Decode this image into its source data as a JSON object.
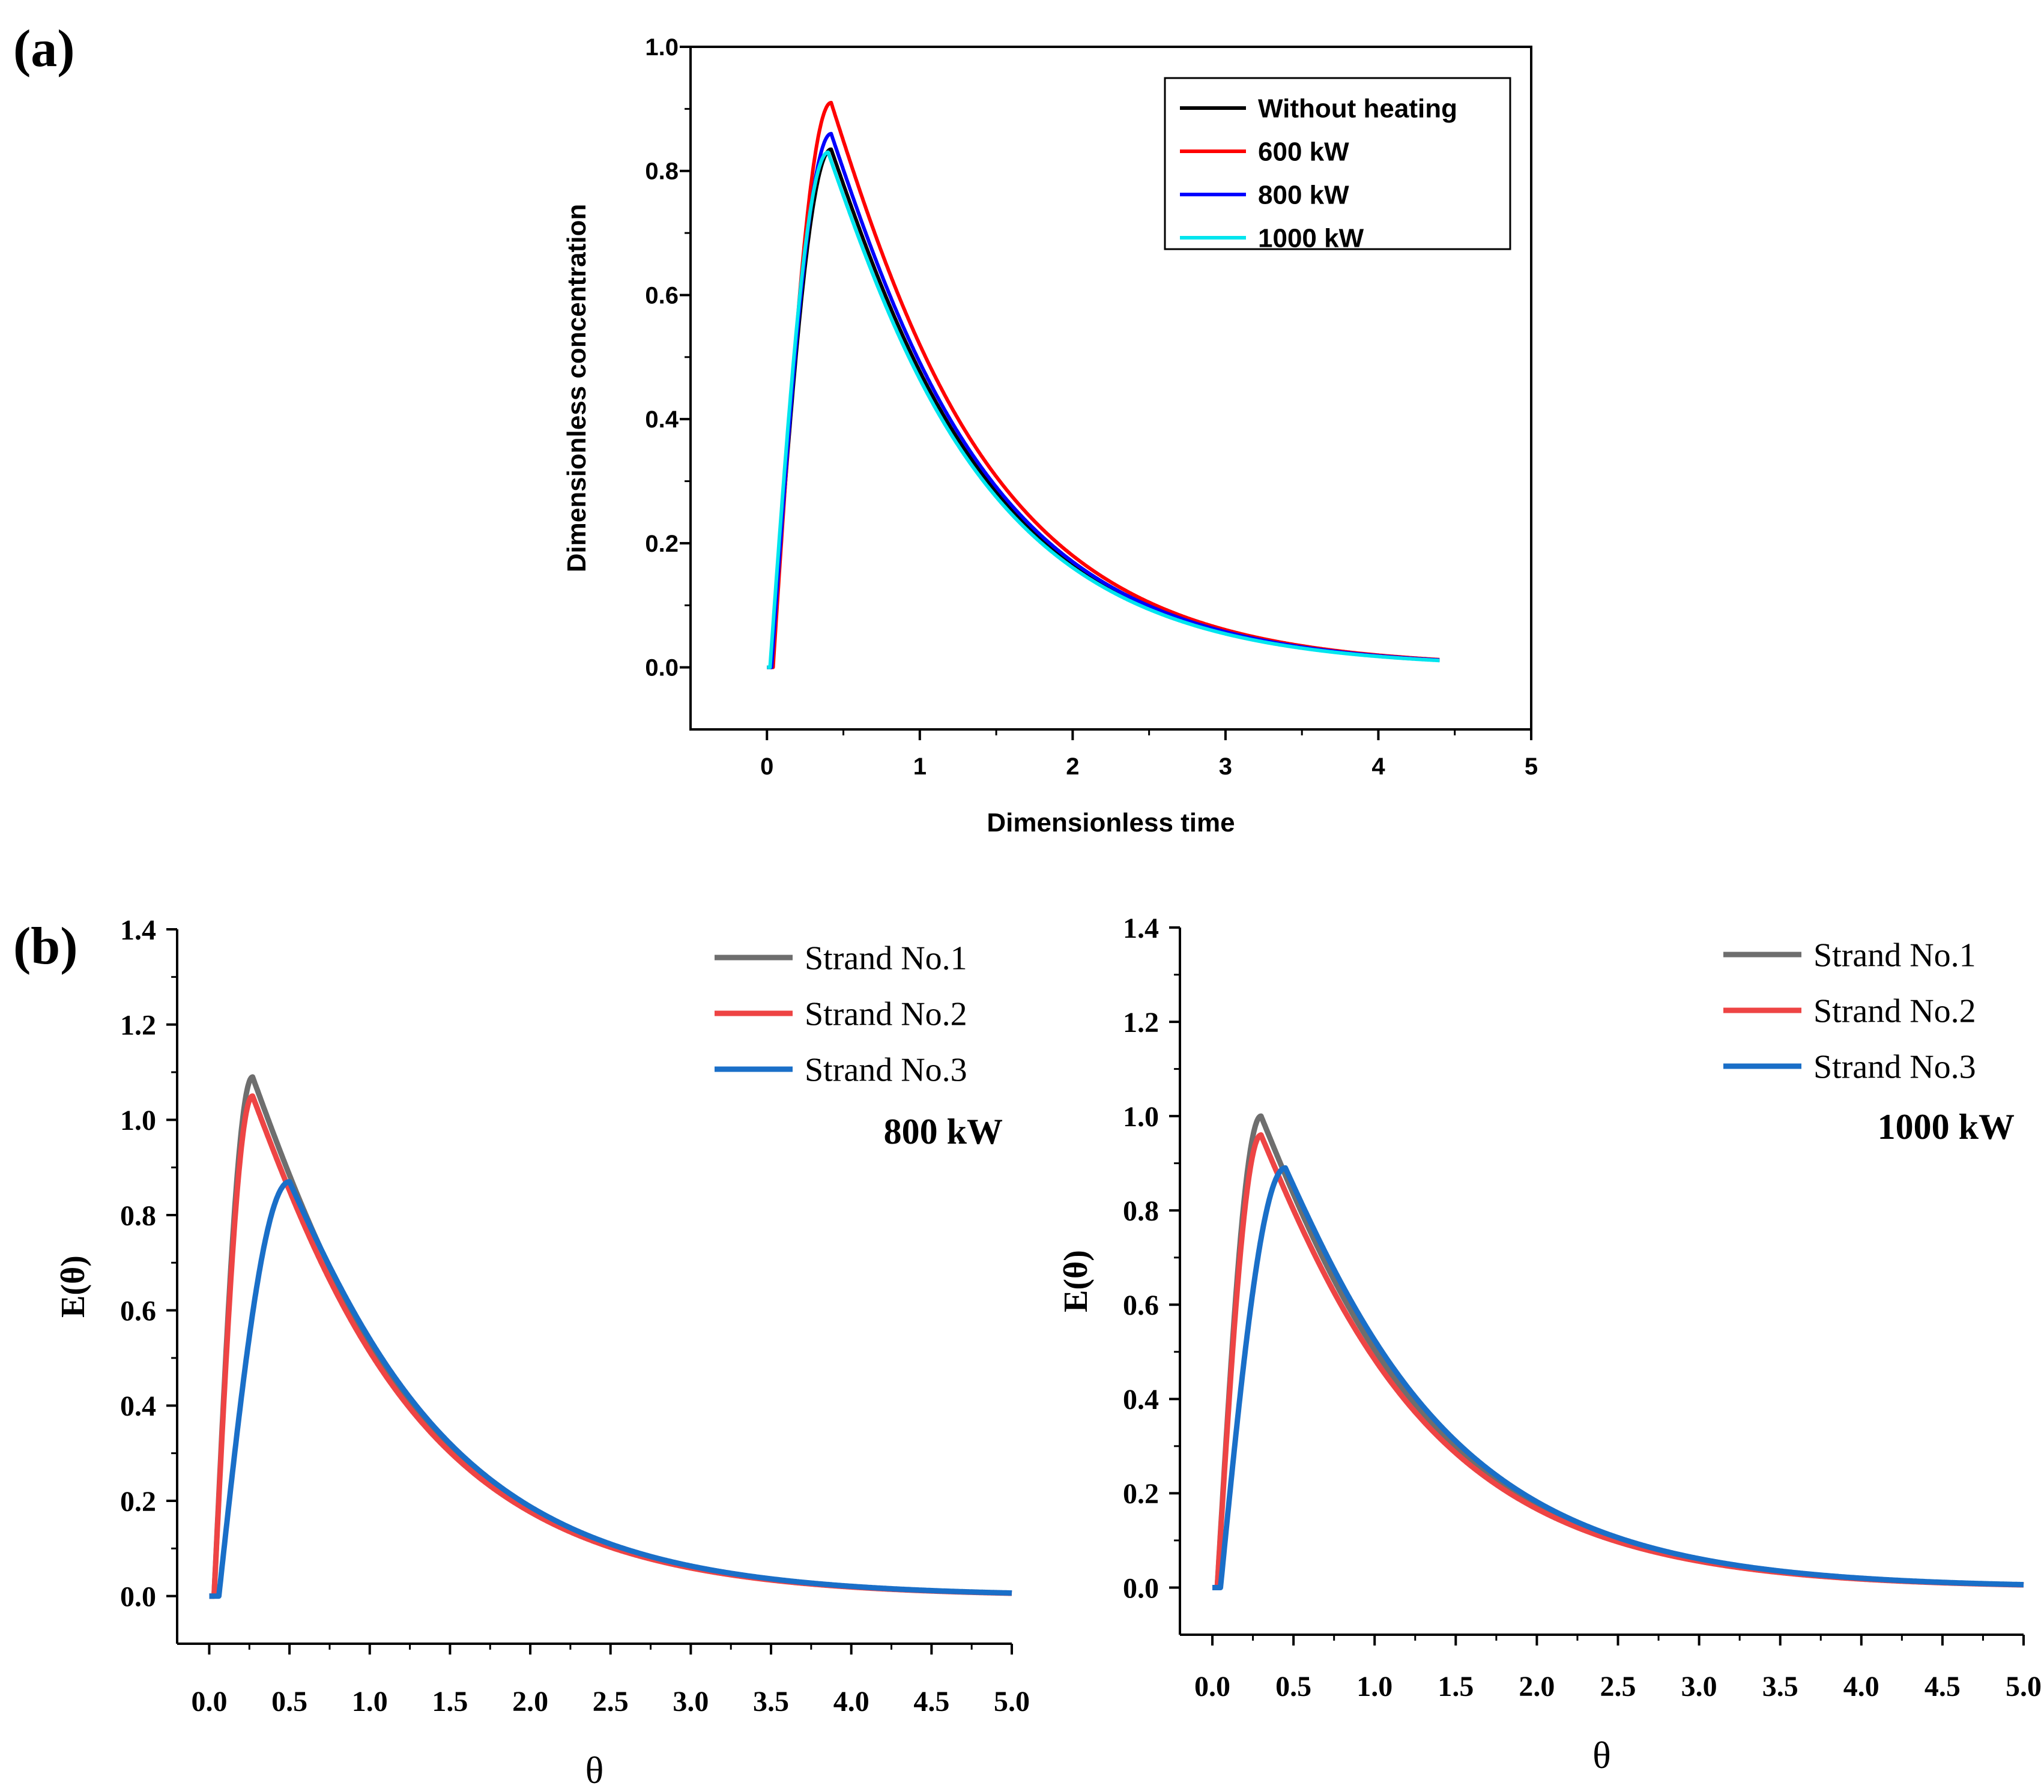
{
  "panel_labels": {
    "a": "(a)",
    "b": "(b)"
  },
  "chart_data": [
    {
      "id": "a",
      "type": "line",
      "title": "",
      "xlabel": "Dimensionless time",
      "ylabel": "Dimensionless concentration",
      "xlim": [
        -0.5,
        5
      ],
      "ylim": [
        -0.1,
        1.0
      ],
      "xticks": [
        0,
        1,
        2,
        3,
        4,
        5
      ],
      "xtick_labels": [
        "0",
        "1",
        "2",
        "3",
        "4",
        "5"
      ],
      "yticks": [
        0.0,
        0.2,
        0.4,
        0.6,
        0.8,
        1.0
      ],
      "ytick_labels": [
        "0.0",
        "0.2",
        "0.4",
        "0.6",
        "0.8",
        "1.0"
      ],
      "legend_position": "top-right",
      "legend_boxed": true,
      "series": [
        {
          "name": "Without  heating",
          "color": "#000000",
          "onset": 0.03,
          "peak_x": 0.42,
          "peak_y": 0.835,
          "x_end": 4.4
        },
        {
          "name": "600 kW",
          "color": "#ff0000",
          "onset": 0.04,
          "peak_x": 0.42,
          "peak_y": 0.91,
          "x_end": 4.4
        },
        {
          "name": "800 kW",
          "color": "#0000ff",
          "onset": 0.03,
          "peak_x": 0.42,
          "peak_y": 0.86,
          "x_end": 4.4
        },
        {
          "name": "1000 kW",
          "color": "#00e5ee",
          "onset": 0.02,
          "peak_x": 0.4,
          "peak_y": 0.83,
          "x_end": 4.4
        }
      ]
    },
    {
      "id": "b1",
      "type": "line",
      "title": "",
      "annotation": "800 kW",
      "xlabel": "θ",
      "ylabel": "E(θ)",
      "xlim": [
        -0.2,
        5.0
      ],
      "ylim": [
        -0.1,
        1.4
      ],
      "xticks": [
        0.0,
        0.5,
        1.0,
        1.5,
        2.0,
        2.5,
        3.0,
        3.5,
        4.0,
        4.5,
        5.0
      ],
      "xtick_labels": [
        "0.0",
        "0.5",
        "1.0",
        "1.5",
        "2.0",
        "2.5",
        "3.0",
        "3.5",
        "4.0",
        "4.5",
        "5.0"
      ],
      "yticks": [
        0.0,
        0.2,
        0.4,
        0.6,
        0.8,
        1.0,
        1.2,
        1.4
      ],
      "ytick_labels": [
        "0.0",
        "0.2",
        "0.4",
        "0.6",
        "0.8",
        "1.0",
        "1.2",
        "1.4"
      ],
      "legend_position": "top-right",
      "legend_boxed": false,
      "series": [
        {
          "name": "Strand No.1",
          "color": "#6e6e6e",
          "onset": 0.03,
          "peak_x": 0.27,
          "peak_y": 1.09,
          "x_end": 5.0
        },
        {
          "name": "Strand No.2",
          "color": "#ee4444",
          "onset": 0.03,
          "peak_x": 0.27,
          "peak_y": 1.05,
          "x_end": 5.0
        },
        {
          "name": "Strand No.3",
          "color": "#1a6fc8",
          "onset": 0.06,
          "peak_x": 0.5,
          "peak_y": 0.87,
          "x_end": 5.0
        }
      ]
    },
    {
      "id": "b2",
      "type": "line",
      "title": "",
      "annotation": "1000 kW",
      "xlabel": "θ",
      "ylabel": "E(θ)",
      "xlim": [
        -0.2,
        5.0
      ],
      "ylim": [
        -0.1,
        1.4
      ],
      "xticks": [
        0.0,
        0.5,
        1.0,
        1.5,
        2.0,
        2.5,
        3.0,
        3.5,
        4.0,
        4.5,
        5.0
      ],
      "xtick_labels": [
        "0.0",
        "0.5",
        "1.0",
        "1.5",
        "2.0",
        "2.5",
        "3.0",
        "3.5",
        "4.0",
        "4.5",
        "5.0"
      ],
      "yticks": [
        0.0,
        0.2,
        0.4,
        0.6,
        0.8,
        1.0,
        1.2,
        1.4
      ],
      "ytick_labels": [
        "0.0",
        "0.2",
        "0.4",
        "0.6",
        "0.8",
        "1.0",
        "1.2",
        "1.4"
      ],
      "legend_position": "top-right",
      "legend_boxed": false,
      "series": [
        {
          "name": "Strand No.1",
          "color": "#6e6e6e",
          "onset": 0.03,
          "peak_x": 0.3,
          "peak_y": 1.0,
          "x_end": 5.0
        },
        {
          "name": "Strand No.2",
          "color": "#ee4444",
          "onset": 0.03,
          "peak_x": 0.3,
          "peak_y": 0.96,
          "x_end": 5.0
        },
        {
          "name": "Strand No.3",
          "color": "#1a6fc8",
          "onset": 0.05,
          "peak_x": 0.45,
          "peak_y": 0.89,
          "x_end": 5.0
        }
      ]
    }
  ]
}
